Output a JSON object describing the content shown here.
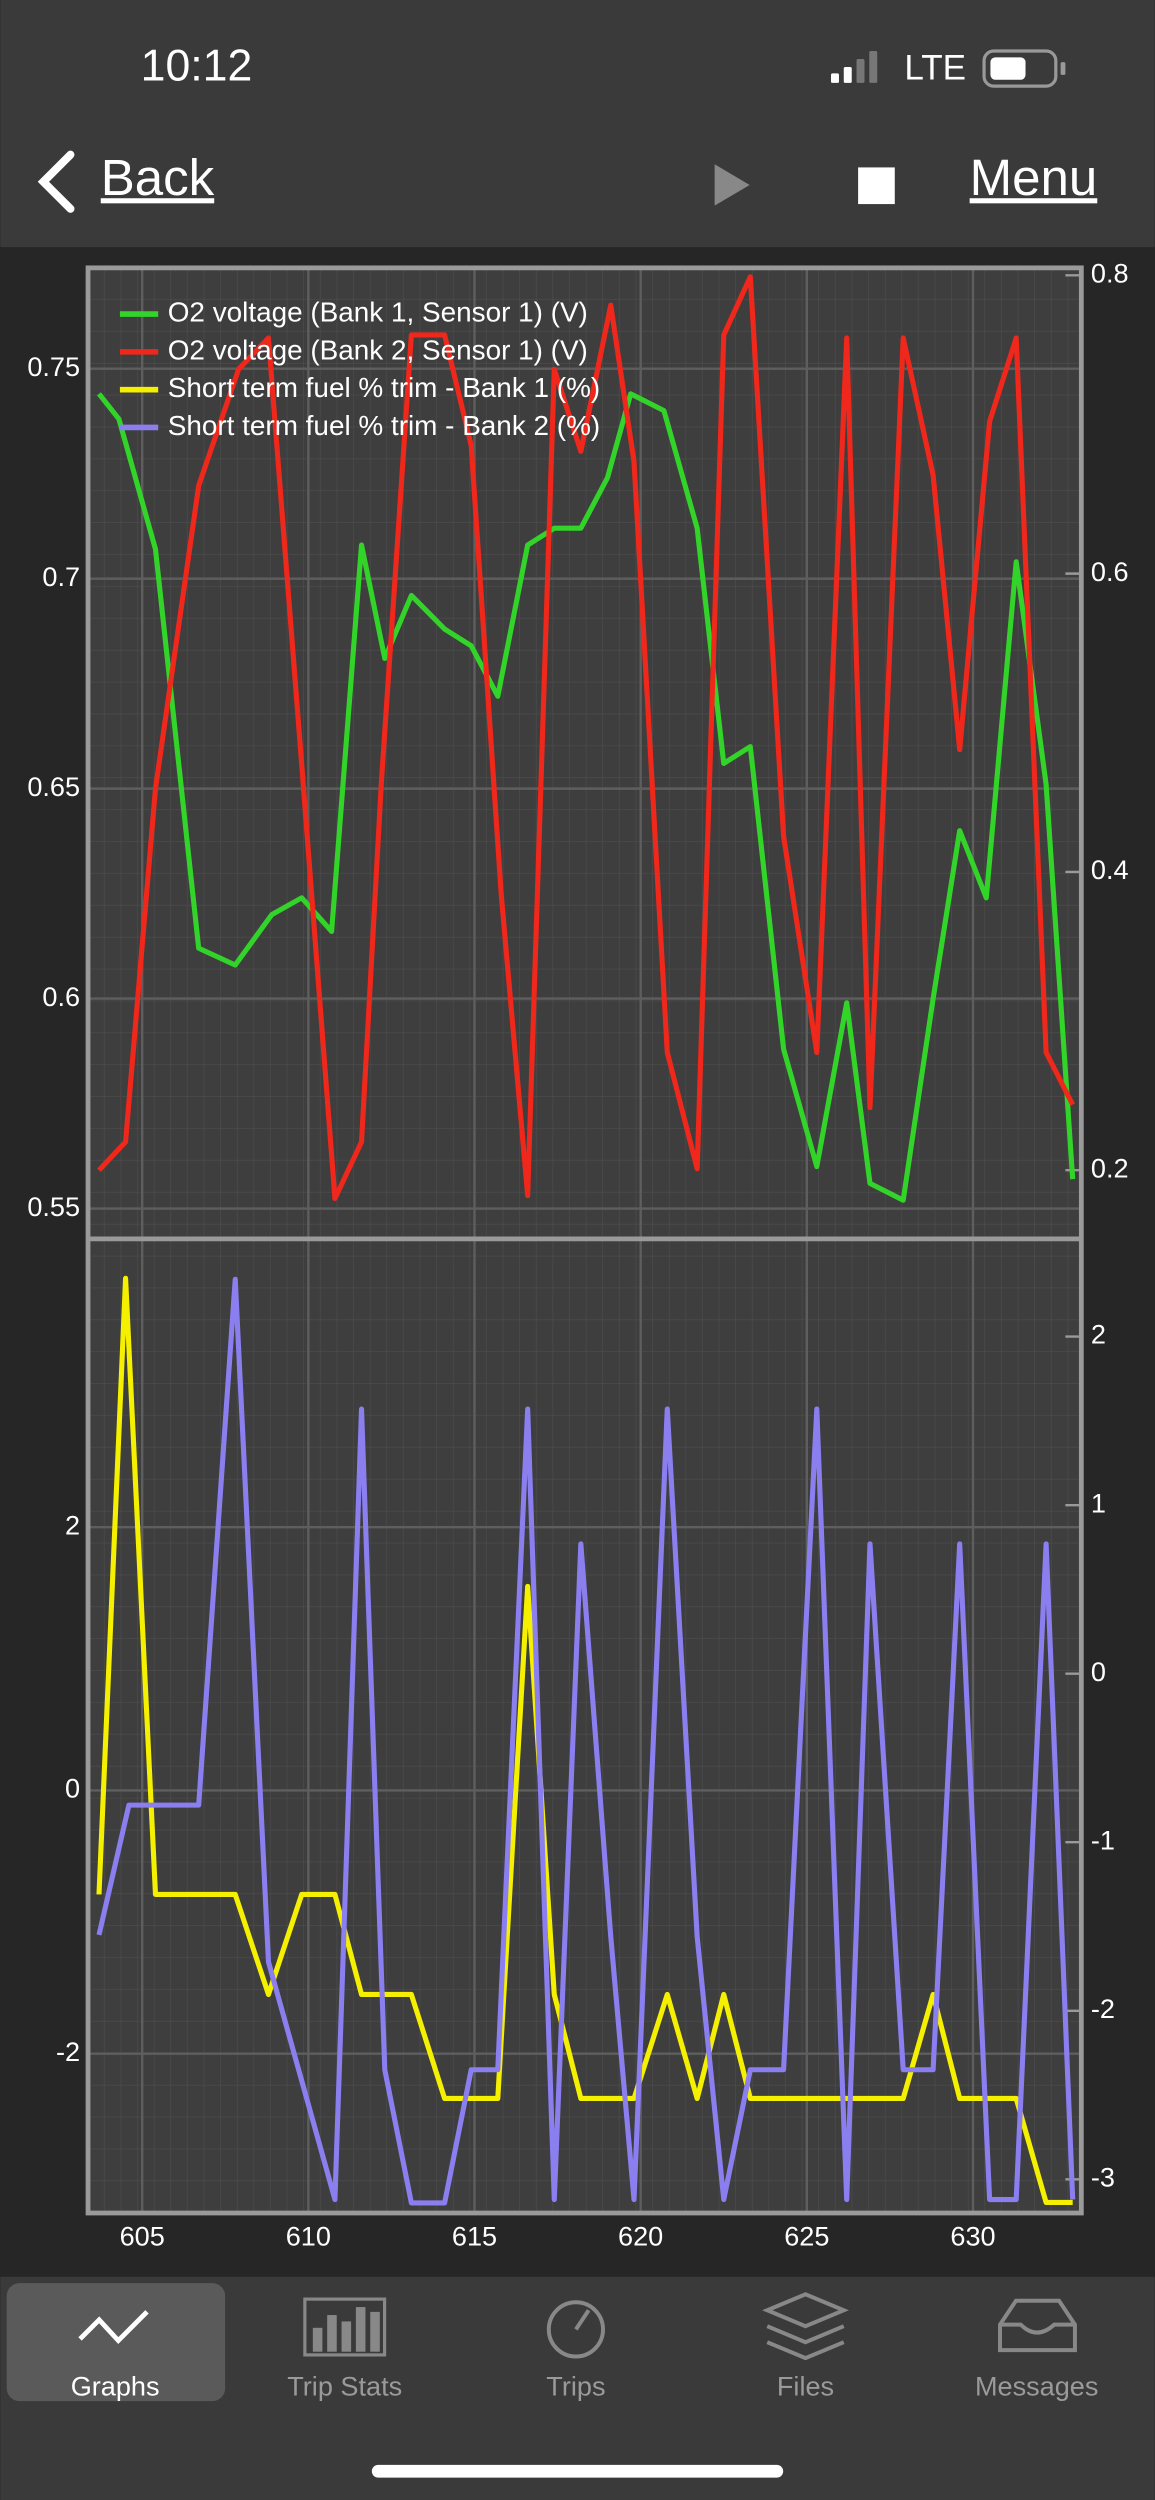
{
  "status": {
    "time": "10:12",
    "network": "LTE"
  },
  "nav": {
    "back": "Back",
    "menu": "Menu"
  },
  "tabs": [
    "Graphs",
    "Trip Stats",
    "Trips",
    "Files",
    "Messages"
  ],
  "chart_data": [
    {
      "type": "line",
      "legend": "upper left",
      "grid": true,
      "xlim": [
        603.37,
        633.26
      ],
      "xticks": [
        605,
        610,
        615,
        620,
        625,
        630
      ],
      "ylim": [
        0.5428,
        0.774
      ],
      "yticks": [
        0.55,
        0.6,
        0.65,
        0.7,
        0.75
      ],
      "y2lim": [
        0.154,
        0.805
      ],
      "y2ticks": [
        0.2,
        0.4,
        0.6,
        0.8
      ],
      "series": [
        {
          "name": "O2 voltage (Bank 1, Sensor 1) (V)",
          "color": "#33d42a",
          "axis": "y",
          "x": [
            603.7,
            604.3,
            605.4,
            606.7,
            607.8,
            608.9,
            609.8,
            610.7,
            611.6,
            612.3,
            613.1,
            614.1,
            614.9,
            615.7,
            616.6,
            617.4,
            618.2,
            619.0,
            619.7,
            620.7,
            621.7,
            622.5,
            623.3,
            624.3,
            625.3,
            626.2,
            626.9,
            627.9,
            628.8,
            629.6,
            630.4,
            631.3,
            632.2,
            633.0
          ],
          "values": [
            0.744,
            0.738,
            0.707,
            0.612,
            0.608,
            0.62,
            0.624,
            0.616,
            0.708,
            0.681,
            0.696,
            0.688,
            0.684,
            0.672,
            0.708,
            0.712,
            0.712,
            0.724,
            0.744,
            0.74,
            0.712,
            0.656,
            0.66,
            0.588,
            0.56,
            0.599,
            0.556,
            0.552,
            0.6,
            0.64,
            0.624,
            0.704,
            0.651,
            0.557
          ]
        },
        {
          "name": "O2 voltage (Bank 2, Sensor 1) (V)",
          "color": "#f0281c",
          "axis": "y2",
          "x": [
            603.7,
            604.5,
            605.4,
            606.7,
            607.9,
            608.8,
            609.8,
            610.8,
            611.6,
            612.2,
            613.1,
            614.1,
            614.9,
            615.8,
            616.6,
            617.4,
            618.2,
            619.1,
            619.8,
            620.8,
            621.7,
            622.5,
            623.3,
            624.3,
            625.3,
            626.2,
            626.9,
            627.9,
            628.8,
            629.6,
            630.5,
            631.3,
            632.2,
            633.0
          ],
          "values": [
            0.2,
            0.219,
            0.456,
            0.659,
            0.737,
            0.758,
            0.472,
            0.181,
            0.219,
            0.461,
            0.76,
            0.76,
            0.686,
            0.386,
            0.183,
            0.737,
            0.682,
            0.78,
            0.675,
            0.279,
            0.201,
            0.76,
            0.799,
            0.424,
            0.279,
            0.758,
            0.242,
            0.758,
            0.666,
            0.482,
            0.702,
            0.758,
            0.279,
            0.244
          ]
        }
      ]
    },
    {
      "type": "line",
      "grid": true,
      "xlim": [
        603.37,
        633.26
      ],
      "xticks": [
        605,
        610,
        615,
        620,
        625,
        630
      ],
      "ylim": [
        -3.21,
        4.19
      ],
      "yticks": [
        -2,
        0,
        2
      ],
      "y2lim": [
        -3.2,
        2.58
      ],
      "y2ticks": [
        -3,
        -2,
        -1,
        0,
        1,
        2
      ],
      "series": [
        {
          "name": "Short term fuel % trim - Bank 1 (%)",
          "color": "#f5f000",
          "axis": "y",
          "x": [
            603.7,
            604.5,
            605.4,
            607.8,
            608.8,
            609.8,
            610.8,
            611.6,
            613.1,
            614.1,
            615.7,
            616.6,
            617.4,
            618.2,
            619.8,
            620.8,
            621.7,
            622.5,
            623.3,
            627.9,
            628.8,
            629.6,
            631.3,
            632.2,
            633.0
          ],
          "values": [
            -0.79,
            3.89,
            -0.79,
            -0.79,
            -1.55,
            -0.79,
            -0.79,
            -1.55,
            -1.55,
            -2.34,
            -2.34,
            1.55,
            -1.55,
            -2.34,
            -2.34,
            -1.55,
            -2.34,
            -1.55,
            -2.34,
            -2.34,
            -1.55,
            -2.34,
            -2.34,
            -3.13,
            -3.13
          ]
        },
        {
          "name": "Short term fuel % trim - Bank 2 (%)",
          "color": "#8b7ff0",
          "axis": "y2",
          "x": [
            603.7,
            604.6,
            606.7,
            607.8,
            608.8,
            610.8,
            611.6,
            612.3,
            613.1,
            614.1,
            614.9,
            615.7,
            616.6,
            617.4,
            618.2,
            619.1,
            619.8,
            620.8,
            621.7,
            622.5,
            623.3,
            624.3,
            625.3,
            626.2,
            626.9,
            627.9,
            628.8,
            629.6,
            630.5,
            631.3,
            632.2,
            633.0
          ],
          "values": [
            -1.55,
            -0.78,
            -0.78,
            2.34,
            -1.71,
            -3.12,
            1.57,
            -2.35,
            -3.14,
            -3.14,
            -2.35,
            -2.35,
            1.57,
            -3.12,
            0.77,
            -1.56,
            -3.12,
            1.57,
            -1.56,
            -3.12,
            -2.35,
            -2.35,
            1.57,
            -3.12,
            0.77,
            -2.35,
            -2.35,
            0.77,
            -3.12,
            -3.12,
            0.77,
            -3.12
          ]
        }
      ]
    }
  ]
}
